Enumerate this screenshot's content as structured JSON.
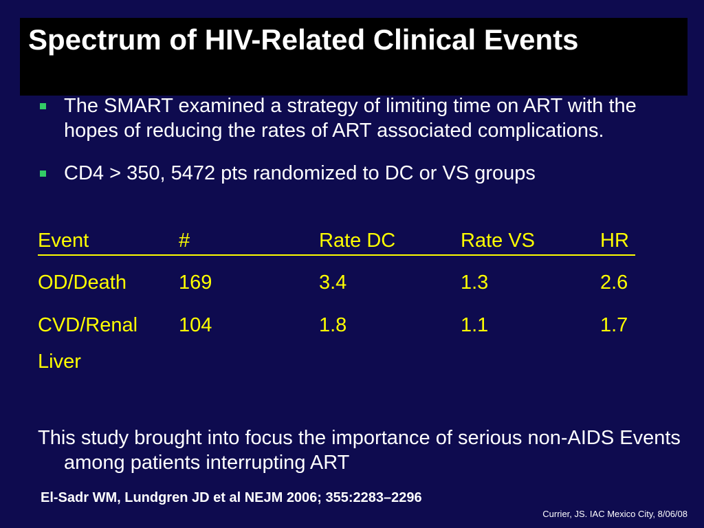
{
  "slide": {
    "title": "Spectrum of HIV-Related Clinical Events",
    "bullets": [
      "The SMART examined a strategy of limiting time on ART with the hopes of  reducing the rates of ART associated complications.",
      "CD4 > 350,  5472 pts randomized to DC or VS groups"
    ],
    "table": {
      "headers": [
        "Event",
        "#",
        "Rate DC",
        "Rate VS",
        "HR"
      ],
      "rows": [
        [
          "OD/Death",
          "169",
          "3.4",
          "1.3",
          "2.6"
        ],
        [
          "CVD/Renal",
          "104",
          "1.8",
          "1.1",
          "1.7"
        ],
        [
          "Liver",
          "",
          "",
          "",
          ""
        ]
      ]
    },
    "conclusion": "This  study brought into focus the importance of serious non-AIDS Events among patients interrupting ART",
    "citation": "El-Sadr WM, Lundgren JD et al NEJM 2006; 355:2283–2296",
    "credit": "Currier, JS. IAC Mexico City, 8/06/08"
  },
  "colors": {
    "background": "#0e0b4f",
    "title_bar": "#000000",
    "table_text": "#ffff00",
    "body_text": "#ffffff",
    "bullet_marker": "#33cc66"
  }
}
